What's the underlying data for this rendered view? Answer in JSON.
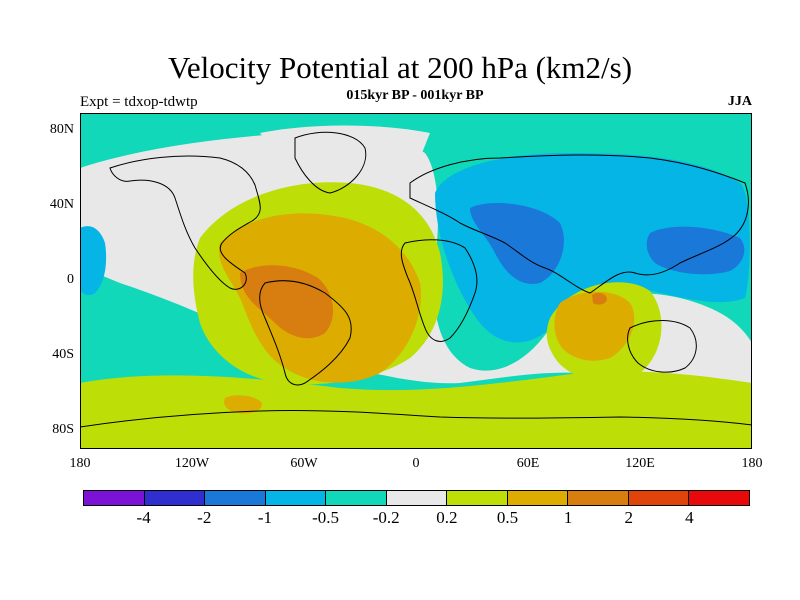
{
  "title": "Velocity Potential at 200 hPa (km2/s)",
  "subtitle": "015kyr BP - 001kyr BP",
  "experiment_label": "Expt = tdxop-tdwtp",
  "season_label": "JJA",
  "lat_labels": [
    "80N",
    "40N",
    "0",
    "40S",
    "80S"
  ],
  "lon_labels": [
    "180",
    "120W",
    "60W",
    "0",
    "60E",
    "120E",
    "180"
  ],
  "colorbar": {
    "colors": [
      "#7b12d6",
      "#2f2fd0",
      "#1a78d9",
      "#05b5e6",
      "#10d8b8",
      "#e8e8e8",
      "#bede08",
      "#dcac00",
      "#d87e10",
      "#e1440b",
      "#e80a0a"
    ],
    "labels": [
      "-4",
      "-2",
      "-1",
      "-0.5",
      "-0.2",
      "0.2",
      "0.5",
      "1",
      "2",
      "4"
    ]
  },
  "map_colors": {
    "ocean_background": "#10d8b8",
    "near_zero": "#e8e8e8",
    "positive_low": "#bede08",
    "positive_mid": "#dcac00",
    "positive_high": "#d87e10",
    "negative_low": "#05b5e6",
    "negative_mid": "#1a78d9"
  }
}
